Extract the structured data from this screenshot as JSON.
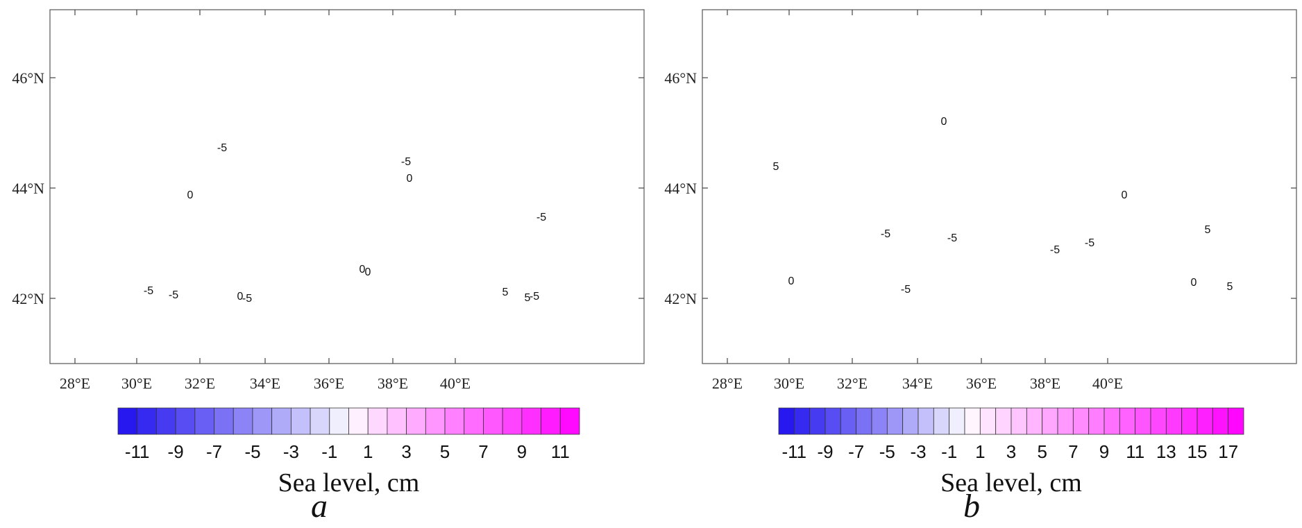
{
  "latitude_labels": [
    "46°N",
    "44°N",
    "42°N"
  ],
  "longitude_labels": [
    "28°E",
    "30°E",
    "32°E",
    "34°E",
    "36°E",
    "38°E",
    "40°E"
  ],
  "colors": {
    "negative": "#1f10ee",
    "zero": "#ffffff",
    "positive": "#ff00ff",
    "land": "#ffffff",
    "contour": "#1a1a1a"
  },
  "panels": [
    {
      "letter": "a",
      "colorbar": {
        "title": "Sea level, cm",
        "min": -12,
        "max": 12,
        "step": 1,
        "tick_labels": [
          "-11",
          "-9",
          "-7",
          "-5",
          "-3",
          "-1",
          "1",
          "3",
          "5",
          "7",
          "9",
          "11"
        ]
      },
      "contour_labels": [
        "-5",
        "0",
        "-5",
        "0",
        "-5",
        "0",
        "-5",
        "0",
        "-5",
        "5",
        "-5",
        "0",
        "-5",
        "5"
      ]
    },
    {
      "letter": "b",
      "colorbar": {
        "title": "Sea level, cm",
        "min": -12,
        "max": 18,
        "step": 1,
        "tick_labels": [
          "-11",
          "-9",
          "-7",
          "-5",
          "-3",
          "-1",
          "1",
          "3",
          "5",
          "7",
          "9",
          "11",
          "13",
          "15",
          "17"
        ]
      },
      "contour_labels": [
        "5",
        "0",
        "0",
        "-5",
        "-5",
        "-5",
        "-5",
        "0",
        "-5",
        "0",
        "5",
        "5"
      ]
    }
  ]
}
